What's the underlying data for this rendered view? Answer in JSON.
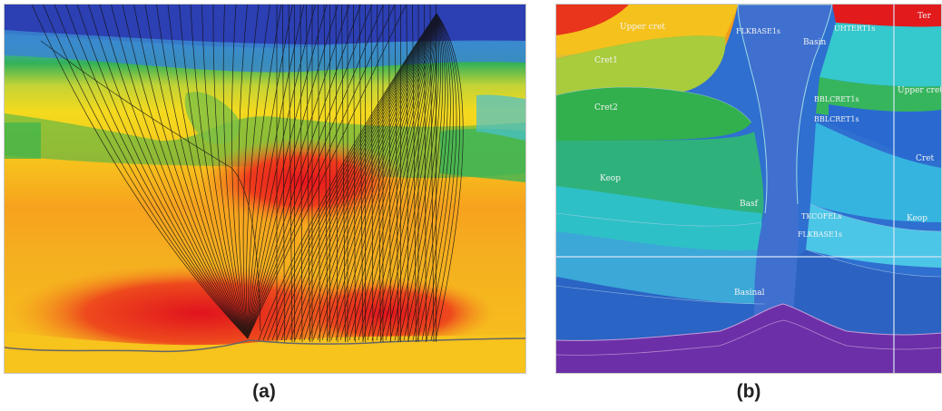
{
  "panels": [
    {
      "id": "a",
      "caption": "(a)",
      "labels": []
    },
    {
      "id": "b",
      "caption": "(b)",
      "labels": [
        {
          "text": "Upper cret"
        },
        {
          "text": "Cret1"
        },
        {
          "text": "Cret2"
        },
        {
          "text": "Keop"
        },
        {
          "text": "FLKBASE1s"
        },
        {
          "text": "Basin"
        },
        {
          "text": "UHTERT1s"
        },
        {
          "text": "Upper cret"
        },
        {
          "text": "BBLCRET1s"
        },
        {
          "text": "BBLCRET1s"
        },
        {
          "text": "Cret"
        },
        {
          "text": "Keop"
        },
        {
          "text": "Basf"
        },
        {
          "text": "TKCOFELs"
        },
        {
          "text": "FLKBASE1s"
        },
        {
          "text": "Basinal"
        },
        {
          "text": "Ter"
        }
      ]
    }
  ]
}
